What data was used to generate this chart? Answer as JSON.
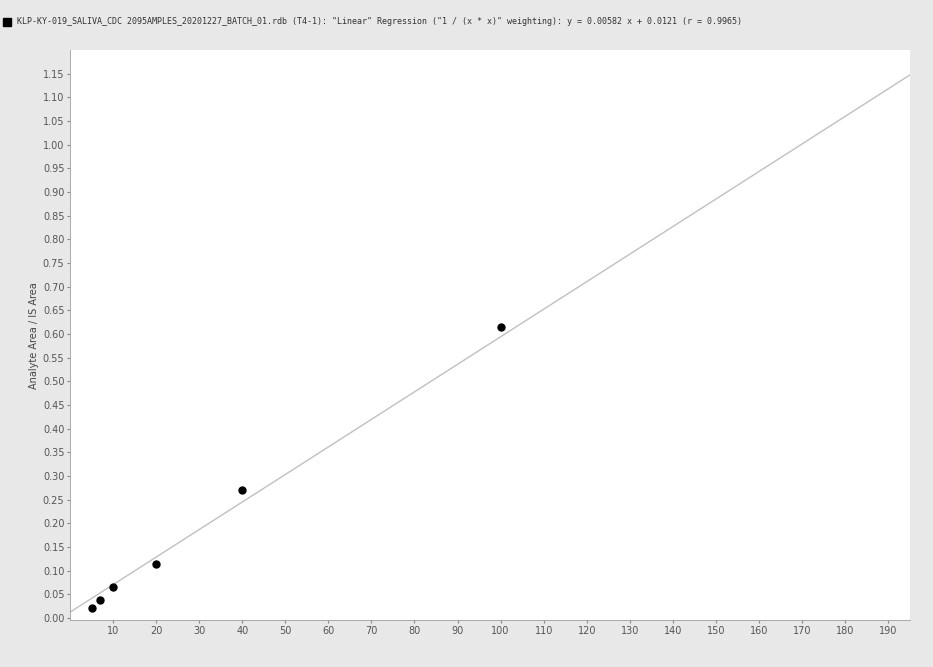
{
  "legend_label": "KLP-KY-019_SALIVA_CDC 2095AMPLES_20201227_BATCH_01.rdb (T4-1): \"Linear\" Regression (\"1 / (x * x)\" weighting): y = 0.00582 x + 0.0121 (r = 0.9965)",
  "ylabel": "Analyte Area / IS Area",
  "xlabel": "",
  "xlim": [
    0,
    195
  ],
  "ylim": [
    -0.005,
    1.2
  ],
  "xticks": [
    10,
    20,
    30,
    40,
    50,
    60,
    70,
    80,
    90,
    100,
    110,
    120,
    130,
    140,
    150,
    160,
    170,
    180,
    190
  ],
  "yticks": [
    0.0,
    0.05,
    0.1,
    0.15,
    0.2,
    0.25,
    0.3,
    0.35,
    0.4,
    0.45,
    0.5,
    0.55,
    0.6,
    0.65,
    0.7,
    0.75,
    0.8,
    0.85,
    0.9,
    0.95,
    1.0,
    1.05,
    1.1,
    1.15
  ],
  "scatter_x": [
    5.0,
    7.0,
    10.0,
    20.0,
    40.0,
    100.0
  ],
  "scatter_y": [
    0.022,
    0.037,
    0.065,
    0.115,
    0.27,
    0.615
  ],
  "scatter_color": "#000000",
  "scatter_size": 25,
  "line_slope": 0.00582,
  "line_intercept": 0.0121,
  "line_color": "#c0c0c0",
  "line_width": 1.0,
  "fig_bg_color": "#e8e8e8",
  "plot_bg_color": "#ffffff",
  "legend_bg_color": "#e8e8e8",
  "tick_color": "#888888",
  "tick_label_fontsize": 7,
  "ylabel_fontsize": 7,
  "legend_fontsize": 6.0,
  "spine_color": "#aaaaaa"
}
